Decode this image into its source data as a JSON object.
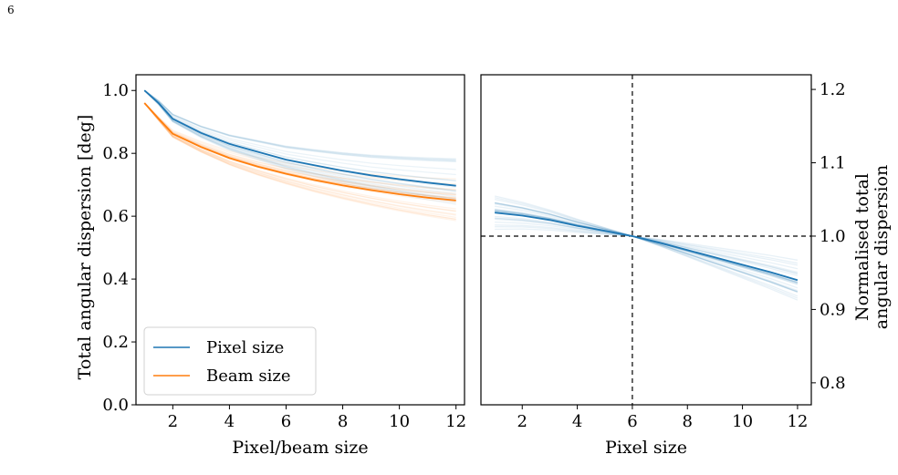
{
  "page_number": "6",
  "chart_data": [
    {
      "type": "line",
      "title": "",
      "xlabel": "Pixel/beam size",
      "ylabel": "Total angular dispersion [deg]",
      "xlim": [
        0.7,
        12.3
      ],
      "ylim": [
        0.0,
        1.05
      ],
      "xticks": [
        "2",
        "4",
        "6",
        "8",
        "10",
        "12"
      ],
      "yticks": [
        "0.0",
        "0.2",
        "0.4",
        "0.6",
        "0.8",
        "1.0"
      ],
      "legend_position": "lower-left",
      "grid": false,
      "x": [
        1,
        1.5,
        2,
        3,
        4,
        5,
        6,
        7,
        8,
        9,
        10,
        11,
        12
      ],
      "series": [
        {
          "name": "Pixel size",
          "color": "#1f77b4",
          "values": [
            1.0,
            0.96,
            0.91,
            0.865,
            0.83,
            0.805,
            0.78,
            0.762,
            0.745,
            0.73,
            0.718,
            0.707,
            0.697
          ]
        },
        {
          "name": "Beam size",
          "color": "#ff7f0e",
          "values": [
            0.96,
            0.91,
            0.862,
            0.82,
            0.785,
            0.758,
            0.735,
            0.715,
            0.698,
            0.683,
            0.67,
            0.659,
            0.65
          ]
        }
      ],
      "band_color_pixel": "#1f77b4",
      "band_color_beam": "#ff7f0e"
    },
    {
      "type": "line",
      "title": "",
      "xlabel": "Pixel size",
      "ylabel_line1": "Normalised total",
      "ylabel_line2": "angular dispersion",
      "xlim": [
        0.5,
        12.5
      ],
      "ylim": [
        0.77,
        1.22
      ],
      "yaxis_side": "right",
      "xticks": [
        "2",
        "4",
        "6",
        "8",
        "10",
        "12"
      ],
      "yticks": [
        "0.8",
        "0.9",
        "1.0",
        "1.1",
        "1.2"
      ],
      "reference_x": 6,
      "reference_y": 1.0,
      "x": [
        1,
        2,
        3,
        4,
        5,
        6,
        7,
        8,
        9,
        10,
        11,
        12
      ],
      "series": [
        {
          "color": "#1f77b4",
          "values": [
            1.032,
            1.028,
            1.022,
            1.014,
            1.007,
            1.0,
            0.991,
            0.981,
            0.971,
            0.961,
            0.951,
            0.94
          ]
        }
      ]
    }
  ]
}
